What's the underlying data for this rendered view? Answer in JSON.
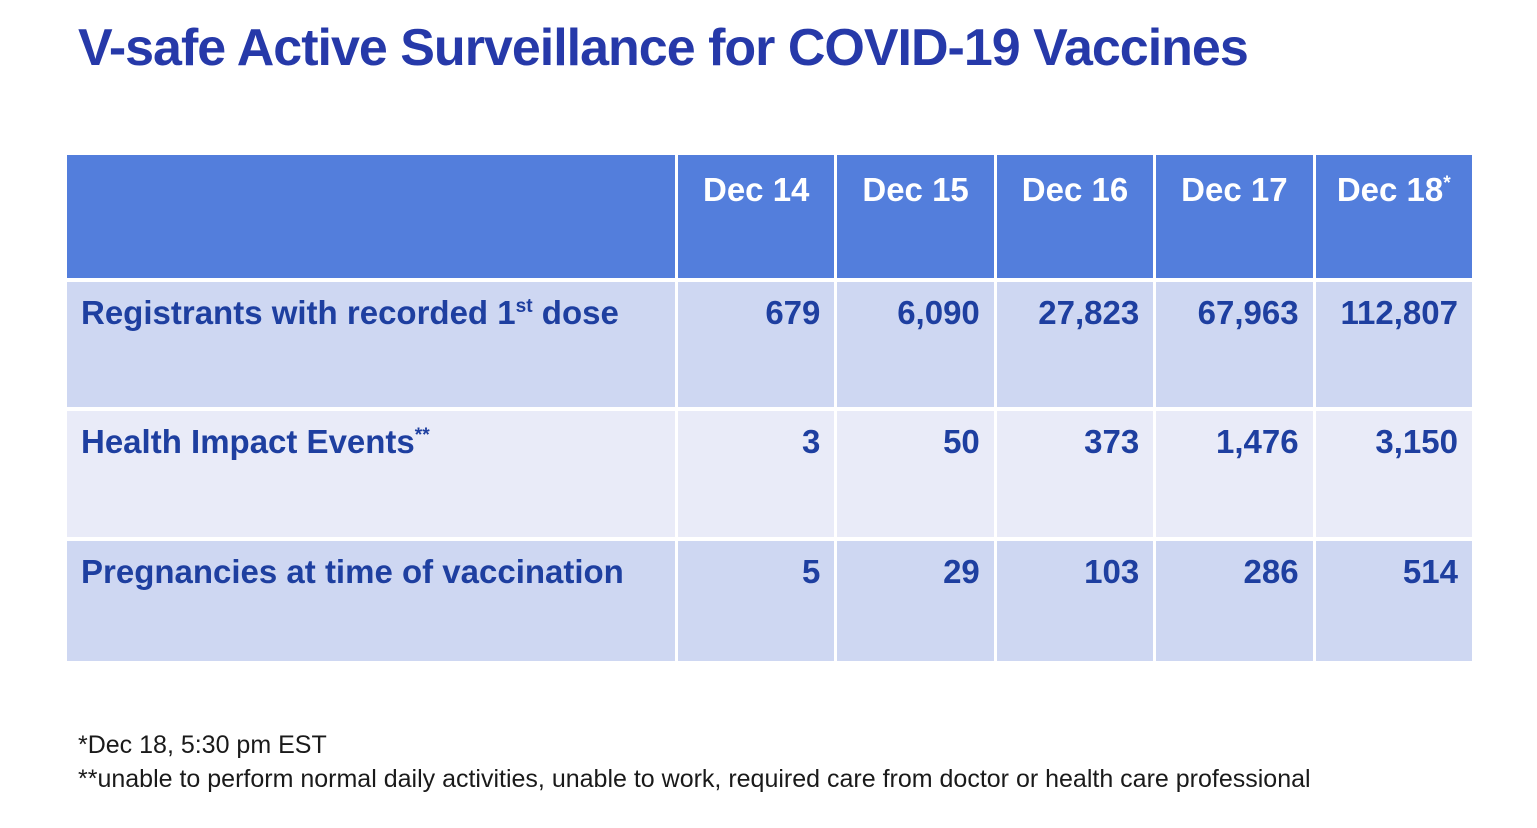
{
  "title": "V-safe Active Surveillance for COVID-19 Vaccines",
  "table": {
    "columns": [
      {
        "label": "Dec 14",
        "sup": ""
      },
      {
        "label": "Dec 15",
        "sup": ""
      },
      {
        "label": "Dec 16",
        "sup": ""
      },
      {
        "label": "Dec 17",
        "sup": ""
      },
      {
        "label": "Dec 18",
        "sup": "*"
      }
    ],
    "rows": [
      {
        "label": "Registrants with recorded 1",
        "sup": "st",
        "tail": " dose",
        "values": [
          "679",
          "6,090",
          "27,823",
          "67,963",
          "112,807"
        ]
      },
      {
        "label": "Health Impact Events",
        "sup": "**",
        "tail": "",
        "values": [
          "3",
          "50",
          "373",
          "1,476",
          "3,150"
        ]
      },
      {
        "label": "Pregnancies at time of vaccination",
        "sup": "",
        "tail": "",
        "values": [
          "5",
          "29",
          "103",
          "286",
          "514"
        ]
      }
    ],
    "colors": {
      "header_bg": "#537EDC",
      "row_band_dark": "#CED7F2",
      "row_band_light": "#E9EBF8",
      "header_text": "#FFFFFF",
      "cell_text": "#1E3FA0",
      "title_text": "#2639A9"
    }
  },
  "footnotes": [
    "*Dec 18, 5:30 pm EST",
    "**unable to perform normal daily activities, unable to work, required care from doctor or health care professional"
  ],
  "chart_data": {
    "type": "table",
    "title": "V-safe Active Surveillance for COVID-19 Vaccines",
    "columns": [
      "Dec 14",
      "Dec 15",
      "Dec 16",
      "Dec 17",
      "Dec 18*"
    ],
    "rows": [
      {
        "label": "Registrants with recorded 1st dose",
        "values": [
          679,
          6090,
          27823,
          67963,
          112807
        ]
      },
      {
        "label": "Health Impact Events**",
        "values": [
          3,
          50,
          373,
          1476,
          3150
        ]
      },
      {
        "label": "Pregnancies at time of vaccination",
        "values": [
          5,
          29,
          103,
          286,
          514
        ]
      }
    ],
    "footnotes": [
      "*Dec 18, 5:30 pm EST",
      "**unable to perform normal daily activities, unable to work, required care from doctor or health care professional"
    ]
  }
}
